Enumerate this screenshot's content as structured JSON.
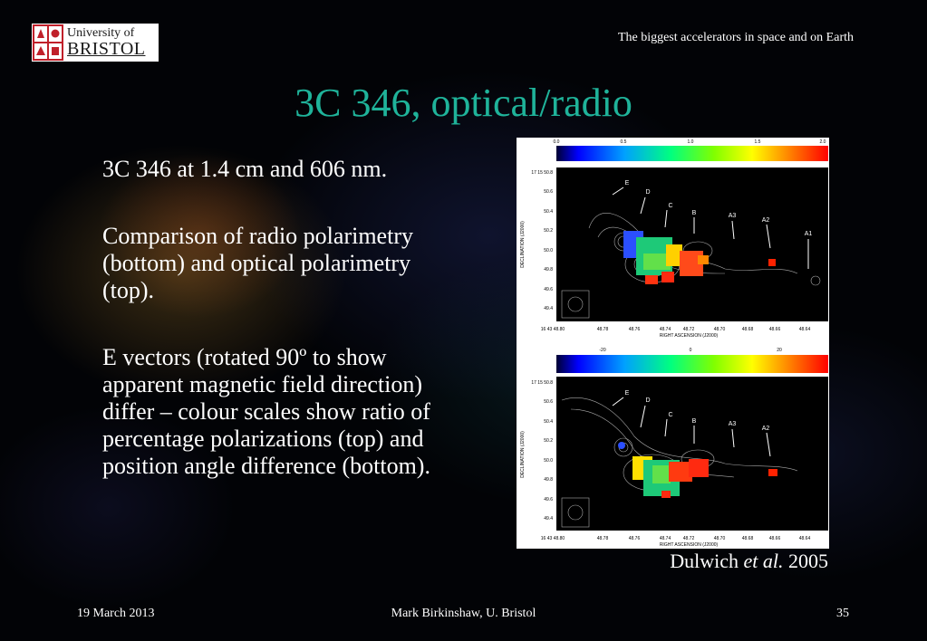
{
  "header": {
    "logo_line1": "University of",
    "logo_line2": "BRISTOL",
    "subtitle": "The biggest accelerators in space and on Earth"
  },
  "slide": {
    "title": "3C 346, optical/radio",
    "paragraphs": [
      "3C 346 at 1.4 cm and 606 nm.",
      "Comparison of radio polarimetry (bottom) and optical polarimetry (top).",
      "E vectors (rotated 90º to show apparent magnetic field direction) differ – colour scales show ratio of percentage polarizations (top) and position angle difference (bottom)."
    ],
    "caption_author": "Dulwich",
    "caption_etal": "et al.",
    "caption_year": "2005"
  },
  "figure": {
    "top_panel": {
      "colorbar_ticks": [
        "0.0",
        "0.5",
        "1.0",
        "1.5",
        "2.0"
      ],
      "dec_ticks": [
        "17 15 50.8",
        "50.6",
        "50.4",
        "50.2",
        "50.0",
        "49.8",
        "49.6",
        "49.4"
      ],
      "ra_ticks": [
        "16 43 48.80",
        "48.78",
        "48.76",
        "48.74",
        "48.72",
        "48.70",
        "48.68",
        "48.66",
        "48.64"
      ],
      "knot_labels": [
        "E",
        "D",
        "C",
        "B",
        "A3",
        "A2",
        "A1"
      ],
      "ylabel": "DECLINATION (J2000)",
      "xlabel": "RIGHT ASCENSION (J2000)"
    },
    "bottom_panel": {
      "colorbar_ticks": [
        "-20",
        "0",
        "20"
      ],
      "dec_ticks": [
        "17 15 50.8",
        "50.6",
        "50.4",
        "50.2",
        "50.0",
        "49.8",
        "49.6",
        "49.4"
      ],
      "ra_ticks": [
        "16 43 48.80",
        "48.78",
        "48.76",
        "48.74",
        "48.72",
        "48.70",
        "48.68",
        "48.66",
        "48.64"
      ],
      "knot_labels": [
        "E",
        "D",
        "C",
        "B",
        "A3",
        "A2"
      ],
      "ylabel": "DECLINATION (J2000)",
      "xlabel": "RIGHT ASCENSION (J2000)"
    }
  },
  "footer": {
    "date": "19 March 2013",
    "author": "Mark Birkinshaw, U. Bristol",
    "page": "35"
  },
  "colors": {
    "title": "#1fb39a",
    "logo_red": "#c0202a"
  }
}
